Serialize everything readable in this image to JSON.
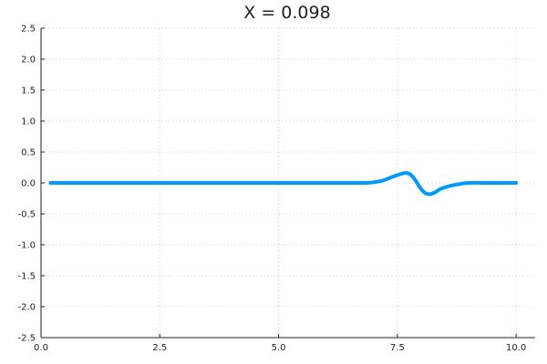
{
  "chart_data": {
    "type": "line",
    "title": "X = 0.098",
    "xlabel": "",
    "ylabel": "",
    "xlim": [
      0.0,
      10.4
    ],
    "ylim": [
      -2.5,
      2.5
    ],
    "x_ticks": [
      0.0,
      2.5,
      5.0,
      7.5,
      10.0
    ],
    "x_tick_labels": [
      "0.0",
      "2.5",
      "5.0",
      "7.5",
      "10.0"
    ],
    "y_ticks": [
      -2.5,
      -2.0,
      -1.5,
      -1.0,
      -0.5,
      0.0,
      0.5,
      1.0,
      1.5,
      2.0,
      2.5
    ],
    "y_tick_labels": [
      "-2.5",
      "-2.0",
      "-1.5",
      "-1.0",
      "-0.5",
      "0.0",
      "0.5",
      "1.0",
      "1.5",
      "2.0",
      "2.5"
    ],
    "grid": true,
    "legend": "none",
    "series": [
      {
        "color": "#009af9",
        "x": [
          0.2,
          1.0,
          2.0,
          3.0,
          4.0,
          5.0,
          6.0,
          6.8,
          7.0,
          7.2,
          7.4,
          7.6,
          7.7,
          7.8,
          7.9,
          8.0,
          8.1,
          8.2,
          8.3,
          8.4,
          8.6,
          8.8,
          9.0,
          9.5,
          10.0
        ],
        "y": [
          0.0,
          0.0,
          0.0,
          0.0,
          0.0,
          0.0,
          0.0,
          0.0,
          0.01,
          0.04,
          0.1,
          0.15,
          0.16,
          0.12,
          0.02,
          -0.1,
          -0.17,
          -0.18,
          -0.15,
          -0.1,
          -0.05,
          -0.02,
          0.0,
          0.0,
          0.0
        ]
      }
    ]
  }
}
